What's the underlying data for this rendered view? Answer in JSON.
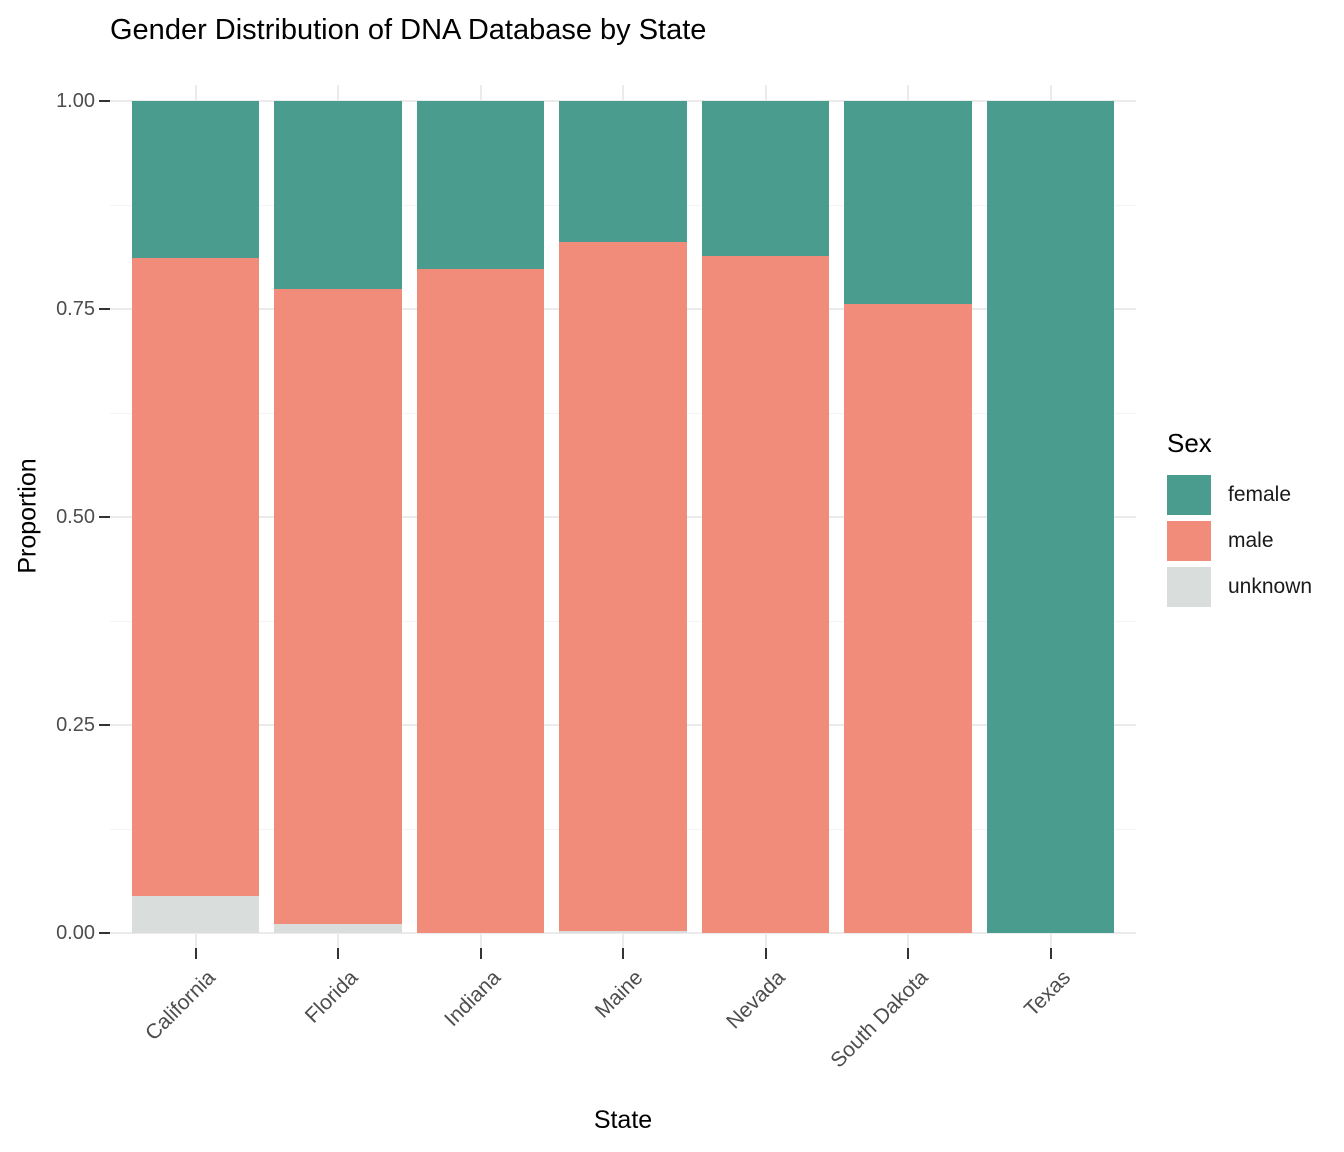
{
  "title": "Gender Distribution of DNA Database by State",
  "chart_data": {
    "type": "bar",
    "stacked": true,
    "normalized": true,
    "title": "Gender Distribution of DNA Database by State",
    "xlabel": "State",
    "ylabel": "Proportion",
    "categories": [
      "California",
      "Florida",
      "Indiana",
      "Maine",
      "Nevada",
      "South Dakota",
      "Texas"
    ],
    "series": [
      {
        "name": "unknown",
        "color": "#d9dddb",
        "values": [
          0.045,
          0.011,
          0,
          0.003,
          0,
          0,
          0
        ]
      },
      {
        "name": "male",
        "color": "#f28c7a",
        "values": [
          0.766,
          0.763,
          0.798,
          0.827,
          0.814,
          0.756,
          0
        ]
      },
      {
        "name": "female",
        "color": "#4a9c8f",
        "values": [
          0.189,
          0.226,
          0.202,
          0.17,
          0.186,
          0.244,
          1.0
        ]
      }
    ],
    "ylim": [
      0,
      1
    ],
    "y_major_ticks": [
      0,
      0.25,
      0.5,
      0.75,
      1.0
    ],
    "y_tick_labels": [
      "0.00",
      "0.25",
      "0.50",
      "0.75",
      "1.00"
    ],
    "y_minor_ticks": [
      0.125,
      0.375,
      0.625,
      0.875
    ],
    "grid": true,
    "legend_position": "right"
  },
  "legend": {
    "title": "Sex",
    "items": [
      {
        "label": "female",
        "color": "#4a9c8f"
      },
      {
        "label": "male",
        "color": "#f28c7a"
      },
      {
        "label": "unknown",
        "color": "#d9dddb"
      }
    ]
  },
  "colors": {
    "female": "#4a9c8f",
    "male": "#f28c7a",
    "unknown": "#d9dddb",
    "grid_major": "#ebebeb",
    "grid_minor": "#f4f4f4",
    "axis_text": "#4d4d4d",
    "tick_mark": "#333333"
  }
}
